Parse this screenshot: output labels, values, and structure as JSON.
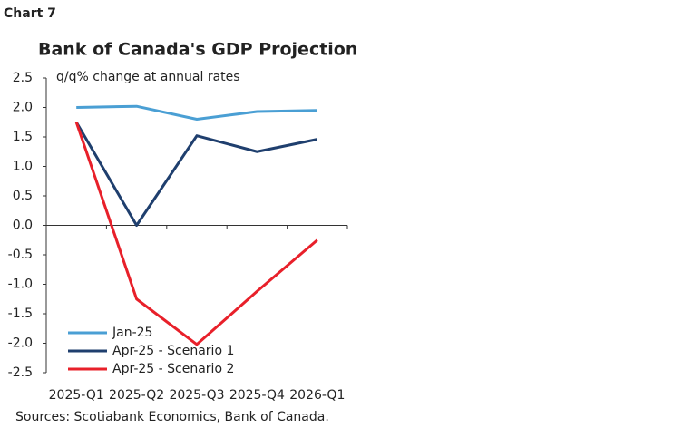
{
  "header": "Chart 7",
  "chart_data": {
    "type": "line",
    "title": "Bank of Canada's GDP Projection",
    "y_label": "q/q% change at annual rates",
    "categories": [
      "2025-Q1",
      "2025-Q2",
      "2025-Q3",
      "2025-Q4",
      "2026-Q1"
    ],
    "series": [
      {
        "name": "Jan-25",
        "color": "#4a9fd4",
        "values": [
          2.0,
          2.02,
          1.8,
          1.93,
          1.95
        ]
      },
      {
        "name": "Apr-25 - Scenario 1",
        "color": "#1f3f6e",
        "values": [
          1.75,
          0.0,
          1.52,
          1.25,
          1.46
        ]
      },
      {
        "name": "Apr-25 - Scenario 2",
        "color": "#e8202a",
        "values": [
          1.75,
          -1.25,
          -2.02,
          -1.12,
          -0.25
        ]
      }
    ],
    "ylim": [
      -2.5,
      2.5
    ],
    "yticks": [
      2.5,
      {
        "value": 2,
        "label": "2.0"
      },
      1.5,
      {
        "value": 1,
        "label": "1.0"
      },
      0.5,
      {
        "value": 0,
        "label": "0.0"
      },
      -0.5,
      {
        "value": -1,
        "label": "-1.0"
      },
      -1.5,
      {
        "value": -2,
        "label": "-2.0"
      },
      -2.5
    ],
    "legend": "lower-left",
    "source": "Sources: Scotiabank Economics, Bank of Canada."
  }
}
